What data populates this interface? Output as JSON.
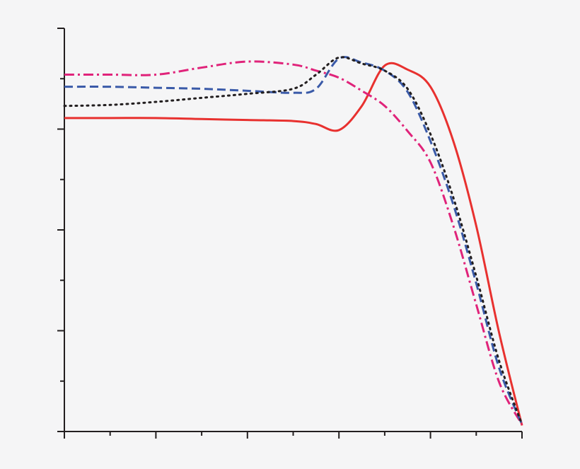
{
  "chart_data": {
    "type": "line",
    "background": "#f5f5f6",
    "axis_color": "#231f20",
    "xlim": [
      0,
      5
    ],
    "ylim": [
      0,
      4
    ],
    "xticks": [
      0,
      1,
      2,
      3,
      4,
      5
    ],
    "xminor_ticks": [
      0.5,
      1.5,
      2.5,
      3.5,
      4.5
    ],
    "yticks": [
      0,
      1,
      2,
      3,
      4
    ],
    "yminor_ticks": [
      0.5,
      1.5,
      2.5,
      3.5
    ],
    "x": [
      0,
      0.5,
      1,
      1.5,
      2,
      2.5,
      2.75,
      3,
      3.25,
      3.5,
      3.75,
      4,
      4.25,
      4.5,
      4.75,
      5
    ],
    "series": [
      {
        "color": "#e8312f",
        "dash": "solid",
        "values": [
          3.11,
          3.11,
          3.11,
          3.1,
          3.09,
          3.08,
          3.05,
          2.99,
          3.23,
          3.63,
          3.59,
          3.42,
          2.88,
          2.04,
          0.98,
          0.06
        ]
      },
      {
        "color": "#e0237a",
        "dash": "dashdot",
        "values": [
          3.54,
          3.54,
          3.54,
          3.61,
          3.67,
          3.64,
          3.58,
          3.51,
          3.38,
          3.23,
          2.98,
          2.67,
          2.04,
          1.26,
          0.49,
          0.07
        ]
      },
      {
        "color": "#3a5aa8",
        "dash": "dashed",
        "values": [
          3.42,
          3.42,
          3.41,
          3.4,
          3.38,
          3.36,
          3.4,
          3.7,
          3.66,
          3.58,
          3.37,
          2.88,
          2.25,
          1.47,
          0.63,
          0.07
        ]
      },
      {
        "color": "#231f20",
        "dash": "dotted",
        "values": [
          3.23,
          3.24,
          3.27,
          3.31,
          3.35,
          3.4,
          3.54,
          3.71,
          3.65,
          3.58,
          3.4,
          2.95,
          2.32,
          1.54,
          0.7,
          0.07
        ]
      }
    ]
  }
}
